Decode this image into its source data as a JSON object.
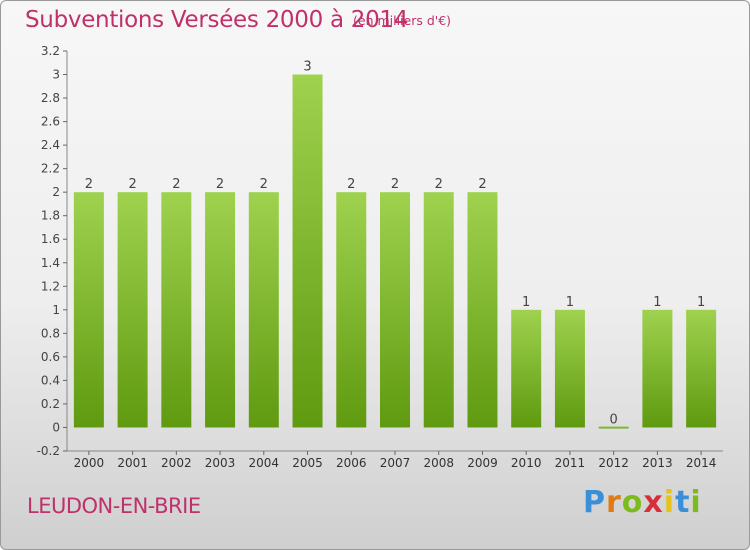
{
  "chart_data": {
    "type": "bar",
    "title": "Subventions Versées 2000 à 2014",
    "subtitle": "(en milliers d'€)",
    "categories": [
      "2000",
      "2001",
      "2002",
      "2003",
      "2004",
      "2005",
      "2006",
      "2007",
      "2008",
      "2009",
      "2010",
      "2011",
      "2012",
      "2013",
      "2014"
    ],
    "values": [
      2,
      2,
      2,
      2,
      2,
      3,
      2,
      2,
      2,
      2,
      1,
      1,
      0,
      1,
      1
    ],
    "data_labels": [
      "2",
      "2",
      "2",
      "2",
      "2",
      "3",
      "2",
      "2",
      "2",
      "2",
      "1",
      "1",
      "0",
      "1",
      "1"
    ],
    "ylim": [
      -0.2,
      3.2
    ],
    "yticks": [
      -0.2,
      0,
      0.2,
      0.4,
      0.6,
      0.8,
      1,
      1.2,
      1.4,
      1.6,
      1.8,
      2,
      2.2,
      2.4,
      2.6,
      2.8,
      3,
      3.2
    ],
    "ytick_labels": [
      "-0.2",
      "0",
      "0.2",
      "0.4",
      "0.6",
      "0.8",
      "1",
      "1.2",
      "1.4",
      "1.6",
      "1.8",
      "2",
      "2.2",
      "2.4",
      "2.6",
      "2.8",
      "3",
      "3.2"
    ],
    "grid": false,
    "bar_color_top": "#9fd24f",
    "bar_color_bottom": "#5f9a10"
  },
  "location": "LEUDON-EN-BRIE",
  "logo": {
    "letters": [
      "P",
      "r",
      "o",
      "x",
      "i",
      "t",
      "i"
    ],
    "colors": [
      "#3a8fd6",
      "#e07b14",
      "#7dbb1d",
      "#d62f3a",
      "#e6c21a",
      "#3a8fd6",
      "#7dbb1d"
    ]
  },
  "colors": {
    "accent": "#c0306a"
  }
}
